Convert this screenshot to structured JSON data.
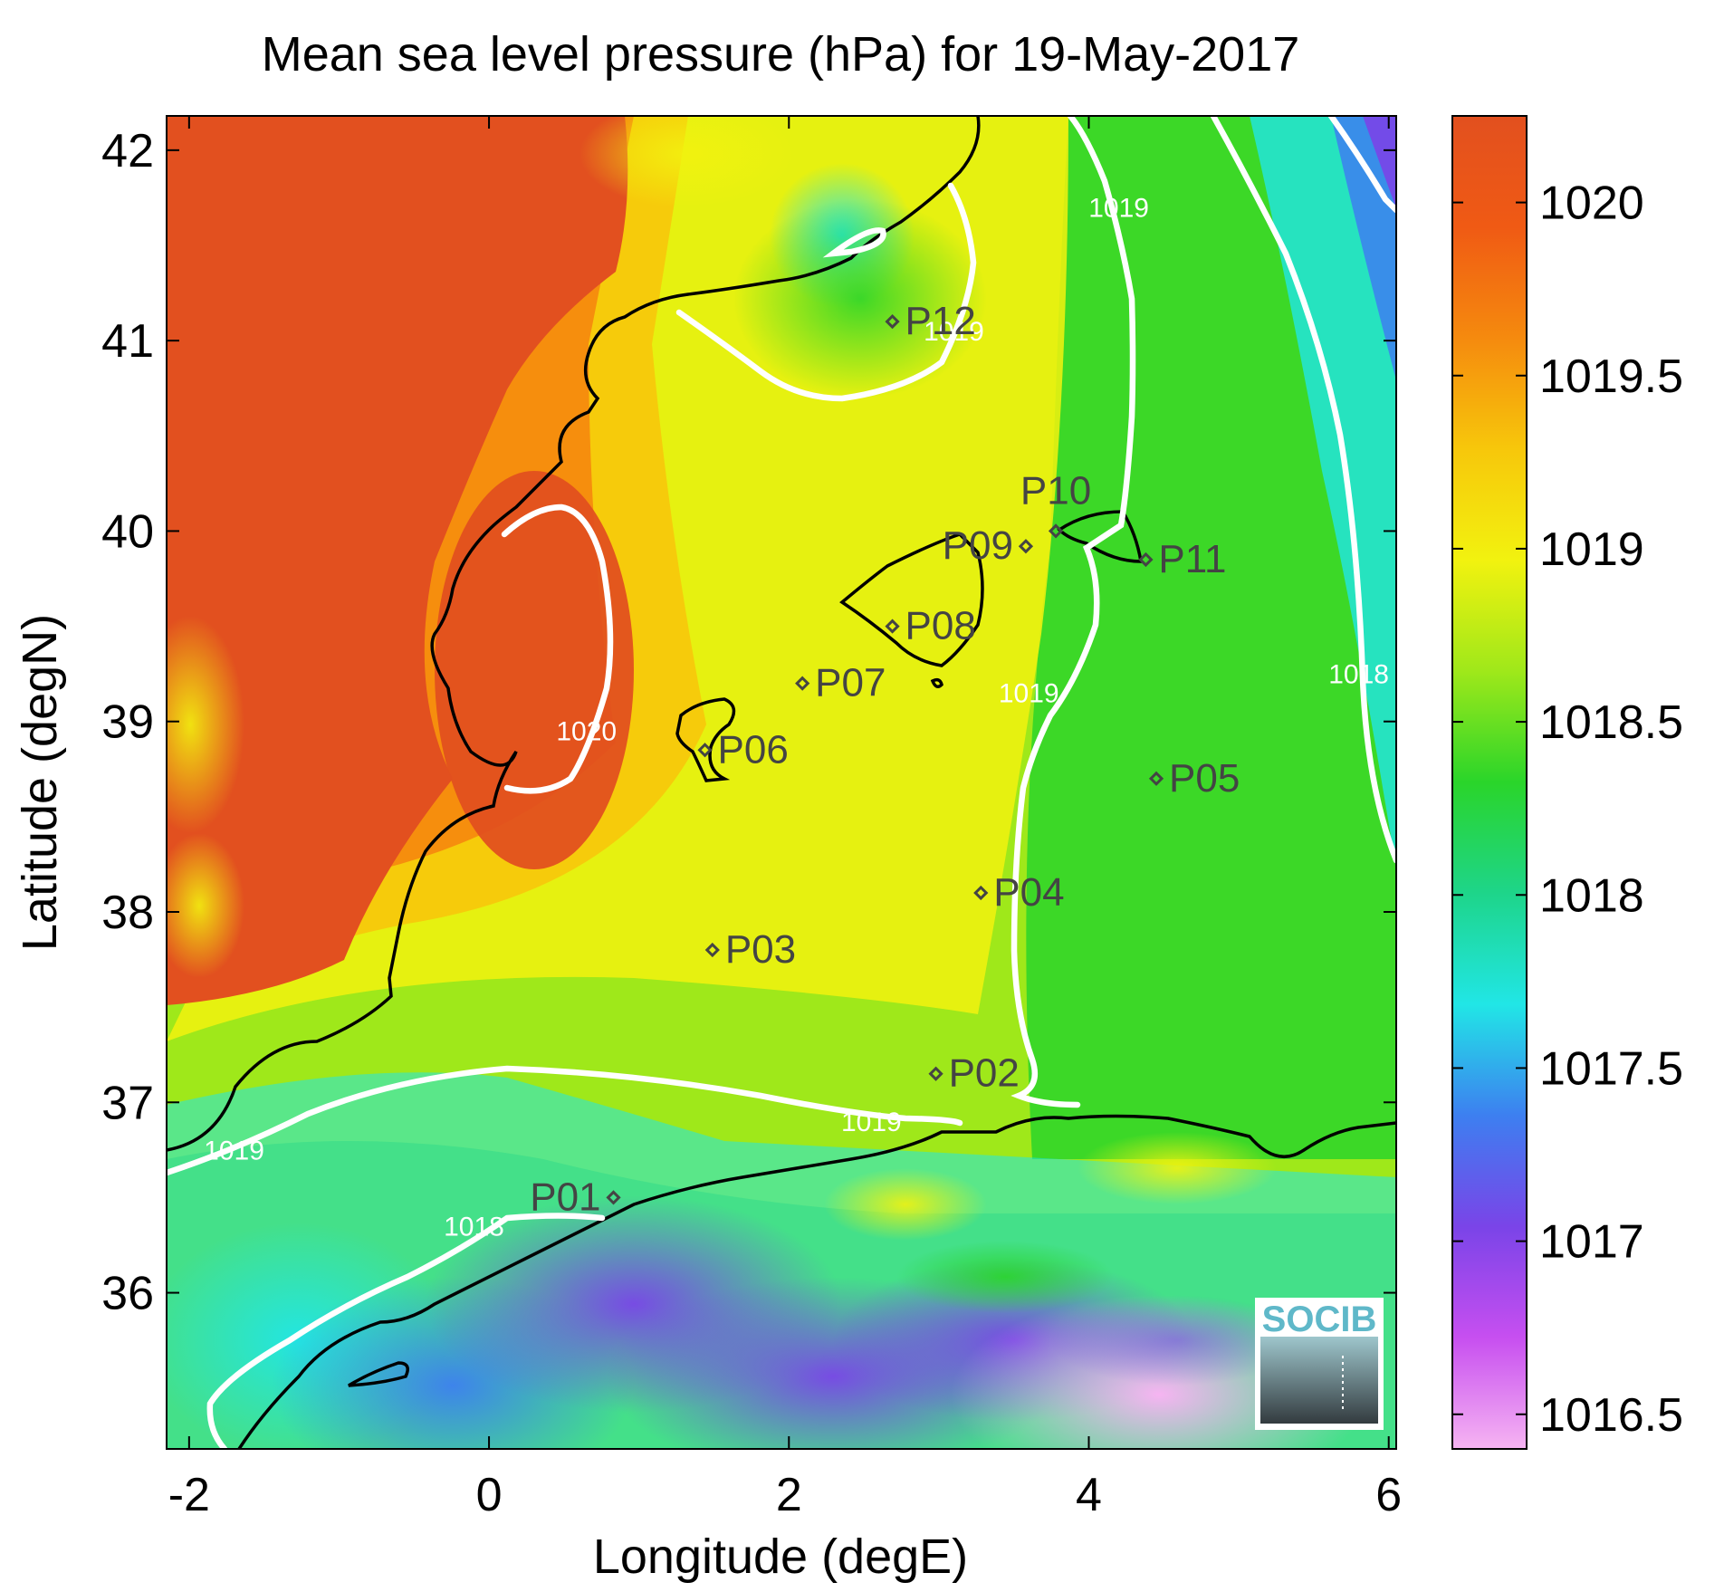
{
  "title": "Mean sea level pressure (hPa) for 19-May-2017",
  "logo_text": "SOCIB",
  "colorbar": {
    "ticks": [
      {
        "label": "1020",
        "value": 1020
      },
      {
        "label": "1019.5",
        "value": 1019.5
      },
      {
        "label": "1019",
        "value": 1019
      },
      {
        "label": "1018.5",
        "value": 1018.5
      },
      {
        "label": "1018",
        "value": 1018
      },
      {
        "label": "1017.5",
        "value": 1017.5
      },
      {
        "label": "1017",
        "value": 1017
      },
      {
        "label": "1016.5",
        "value": 1016.5
      }
    ],
    "range": [
      1016.4,
      1020.25
    ],
    "colors": [
      "#f6b4f2",
      "#c74ff0",
      "#7a44e8",
      "#3d7ff0",
      "#21e6e6",
      "#1ed58a",
      "#2ad52a",
      "#9fe81a",
      "#f2f20f",
      "#f7c70b",
      "#f58a0e",
      "#f05a14",
      "#e2501f"
    ]
  },
  "chart_data": {
    "type": "heatmap",
    "title": "Mean sea level pressure (hPa) for 19-May-2017",
    "xlabel": "Longitude (degE)",
    "ylabel": "Latitude (degN)",
    "xlim": [
      -2.15,
      6.05
    ],
    "ylim": [
      35.18,
      42.18
    ],
    "xticks": [
      {
        "label": "-2",
        "value": -2
      },
      {
        "label": "0",
        "value": 0
      },
      {
        "label": "2",
        "value": 2
      },
      {
        "label": "4",
        "value": 4
      },
      {
        "label": "6",
        "value": 6
      }
    ],
    "yticks": [
      {
        "label": "36",
        "value": 36
      },
      {
        "label": "37",
        "value": 37
      },
      {
        "label": "38",
        "value": 38
      },
      {
        "label": "39",
        "value": 39
      },
      {
        "label": "40",
        "value": 40
      },
      {
        "label": "41",
        "value": 41
      },
      {
        "label": "42",
        "value": 42
      }
    ],
    "contour_labels": [
      {
        "text": "1020",
        "lon": 0.65,
        "lat": 38.9
      },
      {
        "text": "1019",
        "lon": -1.7,
        "lat": 36.7
      },
      {
        "text": "1019",
        "lon": 2.55,
        "lat": 36.85
      },
      {
        "text": "1019",
        "lon": 3.6,
        "lat": 39.1
      },
      {
        "text": "1019",
        "lon": 3.1,
        "lat": 41.0
      },
      {
        "text": "1019",
        "lon": 4.2,
        "lat": 41.65
      },
      {
        "text": "1018",
        "lon": 5.8,
        "lat": 39.2
      },
      {
        "text": "1018",
        "lon": -0.1,
        "lat": 36.3
      }
    ],
    "points": [
      {
        "label": "P01",
        "lon": 0.83,
        "lat": 36.5
      },
      {
        "label": "P02",
        "lon": 2.98,
        "lat": 37.15
      },
      {
        "label": "P03",
        "lon": 1.49,
        "lat": 37.8
      },
      {
        "label": "P04",
        "lon": 3.28,
        "lat": 38.1
      },
      {
        "label": "P05",
        "lon": 4.45,
        "lat": 38.7
      },
      {
        "label": "P06",
        "lon": 1.44,
        "lat": 38.85
      },
      {
        "label": "P07",
        "lon": 2.09,
        "lat": 39.2
      },
      {
        "label": "P08",
        "lon": 2.69,
        "lat": 39.5
      },
      {
        "label": "P09",
        "lon": 3.58,
        "lat": 39.92
      },
      {
        "label": "P10",
        "lon": 3.78,
        "lat": 40.0
      },
      {
        "label": "P11",
        "lon": 4.38,
        "lat": 39.85
      },
      {
        "label": "P12",
        "lon": 2.69,
        "lat": 41.1
      }
    ]
  }
}
